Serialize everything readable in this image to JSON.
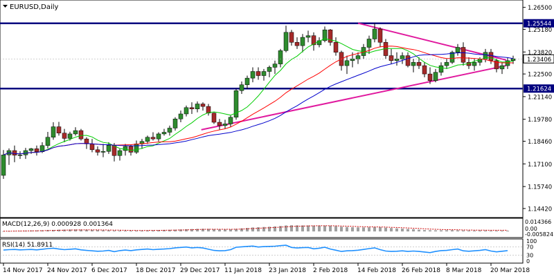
{
  "chart_data": {
    "type": "candlestick",
    "title": "EURUSD,Daily",
    "main_panel": {
      "ylim": [
        1.1392,
        1.269
      ],
      "y_ticks": [
        "1.26500",
        "1.25180",
        "1.23820",
        "1.22500",
        "1.21140",
        "1.19780",
        "1.18460",
        "1.17100",
        "1.15740",
        "1.14420"
      ],
      "y_tick_values": [
        1.265,
        1.2518,
        1.2382,
        1.225,
        1.2114,
        1.1978,
        1.1846,
        1.171,
        1.1574,
        1.1442
      ],
      "grid": false,
      "horizontal_levels": [
        {
          "label": "1.25544",
          "value": 1.25544,
          "color": "#00007f"
        },
        {
          "label": "1.21624",
          "value": 1.21624,
          "color": "#00007f"
        }
      ],
      "current_price": {
        "label": "1.23406",
        "value": 1.23406
      },
      "trendlines": [
        {
          "color": "#e0199e",
          "from": {
            "x": "14 Feb 2018",
            "y": 1.2555
          },
          "to": {
            "x": "21 Mar 2018",
            "y": 1.2334
          }
        },
        {
          "color": "#e0199e",
          "from": {
            "x": "3 Jan 2018",
            "y": 1.1915
          },
          "to": {
            "x": "21 Mar 2018",
            "y": 1.23
          }
        }
      ]
    },
    "x_tick_labels": [
      "14 Nov 2017",
      "24 Nov 2017",
      "6 Dec 2017",
      "18 Dec 2017",
      "29 Dec 2017",
      "11 Jan 2018",
      "23 Jan 2018",
      "2 Feb 2018",
      "14 Feb 2018",
      "26 Feb 2018",
      "8 Mar 2018",
      "20 Mar 2018"
    ],
    "x_tick_bar_index": [
      0,
      8,
      16,
      24,
      32,
      40,
      48,
      56,
      64,
      72,
      80,
      88
    ],
    "candles": [
      [
        1.1641,
        1.1793,
        1.162,
        1.1764
      ],
      [
        1.1764,
        1.1803,
        1.1704,
        1.179
      ],
      [
        1.179,
        1.182,
        1.172,
        1.1762
      ],
      [
        1.1762,
        1.1786,
        1.174,
        1.1764
      ],
      [
        1.1764,
        1.1806,
        1.174,
        1.179
      ],
      [
        1.179,
        1.1806,
        1.177,
        1.1801
      ],
      [
        1.1801,
        1.182,
        1.176,
        1.1783
      ],
      [
        1.1783,
        1.184,
        1.1775,
        1.182
      ],
      [
        1.182,
        1.1902,
        1.1803,
        1.187
      ],
      [
        1.187,
        1.196,
        1.1855,
        1.1933
      ],
      [
        1.1933,
        1.1962,
        1.188,
        1.1895
      ],
      [
        1.1895,
        1.192,
        1.184,
        1.1863
      ],
      [
        1.1863,
        1.1903,
        1.185,
        1.189
      ],
      [
        1.189,
        1.193,
        1.188,
        1.191
      ],
      [
        1.191,
        1.192,
        1.185,
        1.186
      ],
      [
        1.186,
        1.187,
        1.18,
        1.183
      ],
      [
        1.183,
        1.186,
        1.178,
        1.1795
      ],
      [
        1.1795,
        1.1815,
        1.176,
        1.178
      ],
      [
        1.178,
        1.183,
        1.175,
        1.1785
      ],
      [
        1.1785,
        1.184,
        1.177,
        1.1822
      ],
      [
        1.1822,
        1.1835,
        1.1725,
        1.176
      ],
      [
        1.176,
        1.18,
        1.173,
        1.179
      ],
      [
        1.179,
        1.183,
        1.176,
        1.1815
      ],
      [
        1.1815,
        1.1825,
        1.176,
        1.178
      ],
      [
        1.178,
        1.185,
        1.177,
        1.183
      ],
      [
        1.183,
        1.186,
        1.18,
        1.1845
      ],
      [
        1.1845,
        1.188,
        1.183,
        1.187
      ],
      [
        1.187,
        1.19,
        1.185,
        1.186
      ],
      [
        1.186,
        1.19,
        1.1845,
        1.189
      ],
      [
        1.189,
        1.192,
        1.188,
        1.19
      ],
      [
        1.19,
        1.194,
        1.188,
        1.1925
      ],
      [
        1.1925,
        1.199,
        1.191,
        1.198
      ],
      [
        1.198,
        1.203,
        1.196,
        1.201
      ],
      [
        1.201,
        1.206,
        1.1995,
        1.2048
      ],
      [
        1.2048,
        1.208,
        1.201,
        1.204
      ],
      [
        1.204,
        1.2085,
        1.202,
        1.207
      ],
      [
        1.207,
        1.208,
        1.203,
        1.2055
      ],
      [
        1.2055,
        1.207,
        1.2,
        1.2015
      ],
      [
        1.2015,
        1.202,
        1.195,
        1.196
      ],
      [
        1.196,
        1.198,
        1.1915,
        1.194
      ],
      [
        1.194,
        1.1975,
        1.192,
        1.195
      ],
      [
        1.195,
        1.2,
        1.193,
        1.199
      ],
      [
        1.199,
        1.216,
        1.1975,
        1.215
      ],
      [
        1.215,
        1.2205,
        1.213,
        1.2185
      ],
      [
        1.2185,
        1.224,
        1.216,
        1.2225
      ],
      [
        1.2225,
        1.229,
        1.22,
        1.2265
      ],
      [
        1.2265,
        1.229,
        1.2215,
        1.224
      ],
      [
        1.224,
        1.228,
        1.221,
        1.2265
      ],
      [
        1.2265,
        1.23,
        1.223,
        1.229
      ],
      [
        1.229,
        1.233,
        1.225,
        1.231
      ],
      [
        1.231,
        1.24,
        1.229,
        1.239
      ],
      [
        1.239,
        1.254,
        1.238,
        1.25
      ],
      [
        1.25,
        1.2515,
        1.242,
        1.244
      ],
      [
        1.244,
        1.247,
        1.24,
        1.242
      ],
      [
        1.242,
        1.249,
        1.238,
        1.247
      ],
      [
        1.247,
        1.251,
        1.244,
        1.248
      ],
      [
        1.248,
        1.25,
        1.239,
        1.2425
      ],
      [
        1.2425,
        1.247,
        1.241,
        1.245
      ],
      [
        1.245,
        1.2535,
        1.244,
        1.2515
      ],
      [
        1.2515,
        1.252,
        1.242,
        1.244
      ],
      [
        1.244,
        1.247,
        1.236,
        1.238
      ],
      [
        1.238,
        1.239,
        1.227,
        1.23
      ],
      [
        1.23,
        1.236,
        1.225,
        1.233
      ],
      [
        1.233,
        1.238,
        1.229,
        1.234
      ],
      [
        1.234,
        1.238,
        1.231,
        1.236
      ],
      [
        1.236,
        1.243,
        1.234,
        1.241
      ],
      [
        1.241,
        1.248,
        1.237,
        1.246
      ],
      [
        1.246,
        1.2555,
        1.244,
        1.252
      ],
      [
        1.252,
        1.253,
        1.241,
        1.244
      ],
      [
        1.244,
        1.246,
        1.234,
        1.236
      ],
      [
        1.236,
        1.24,
        1.231,
        1.233
      ],
      [
        1.233,
        1.238,
        1.23,
        1.234
      ],
      [
        1.234,
        1.238,
        1.231,
        1.236
      ],
      [
        1.236,
        1.238,
        1.229,
        1.23
      ],
      [
        1.23,
        1.234,
        1.226,
        1.232
      ],
      [
        1.232,
        1.235,
        1.228,
        1.23
      ],
      [
        1.23,
        1.232,
        1.223,
        1.225
      ],
      [
        1.225,
        1.229,
        1.219,
        1.221
      ],
      [
        1.221,
        1.228,
        1.22,
        1.226
      ],
      [
        1.226,
        1.232,
        1.224,
        1.23
      ],
      [
        1.23,
        1.234,
        1.228,
        1.232
      ],
      [
        1.232,
        1.239,
        1.231,
        1.238
      ],
      [
        1.238,
        1.243,
        1.236,
        1.241
      ],
      [
        1.241,
        1.244,
        1.23,
        1.232
      ],
      [
        1.232,
        1.235,
        1.228,
        1.23
      ],
      [
        1.23,
        1.234,
        1.227,
        1.232
      ],
      [
        1.232,
        1.235,
        1.23,
        1.234
      ],
      [
        1.234,
        1.24,
        1.232,
        1.238
      ],
      [
        1.238,
        1.24,
        1.231,
        1.233
      ],
      [
        1.233,
        1.234,
        1.226,
        1.228
      ],
      [
        1.228,
        1.232,
        1.225,
        1.23
      ],
      [
        1.23,
        1.235,
        1.228,
        1.233
      ],
      [
        1.233,
        1.236,
        1.231,
        1.2341
      ]
    ],
    "moving_averages": [
      {
        "color": "#00cc00",
        "period": 8
      },
      {
        "color": "#ff0000",
        "period": 21
      },
      {
        "color": "#0000cc",
        "period": 34
      }
    ],
    "macd_panel": {
      "label": "MACD(12,26,9) 0.000928 0.001364",
      "y_ticks": [
        "0.014366",
        "0.00",
        "-0.005824"
      ],
      "y_tick_values": [
        0.014366,
        0.0,
        -0.005824
      ],
      "histogram_color": "#a0a0a0",
      "signal_color": "#cc0000",
      "histogram": [
        0.0002,
        0.0003,
        0.0005,
        0.0007,
        0.0009,
        0.0011,
        0.0012,
        0.0014,
        0.0016,
        0.0018,
        0.0021,
        0.0022,
        0.0023,
        0.0024,
        0.0023,
        0.0021,
        0.0019,
        0.0017,
        0.0015,
        0.0014,
        0.0011,
        0.001,
        0.001,
        0.0009,
        0.001,
        0.0011,
        0.0013,
        0.0014,
        0.0016,
        0.0017,
        0.0019,
        0.0021,
        0.0024,
        0.0027,
        0.0029,
        0.0031,
        0.0032,
        0.0031,
        0.0028,
        0.0025,
        0.0024,
        0.0025,
        0.0031,
        0.0037,
        0.0042,
        0.0048,
        0.0051,
        0.0054,
        0.0057,
        0.0061,
        0.0066,
        0.0073,
        0.0075,
        0.0074,
        0.0073,
        0.0073,
        0.0071,
        0.007,
        0.0071,
        0.0069,
        0.0064,
        0.0058,
        0.0054,
        0.0051,
        0.0049,
        0.0049,
        0.005,
        0.0053,
        0.0051,
        0.0046,
        0.0041,
        0.0037,
        0.0034,
        0.003,
        0.0027,
        0.0022,
        0.0017,
        0.0015,
        0.0014,
        0.0014,
        0.0015,
        0.0016,
        0.0014,
        0.0012,
        0.0011,
        0.0011,
        0.0012,
        0.0011,
        0.0009,
        0.0009,
        0.0009,
        0.0009
      ],
      "signal": [
        0.0003,
        0.0003,
        0.0004,
        0.0005,
        0.0006,
        0.0007,
        0.0008,
        0.0009,
        0.0011,
        0.0012,
        0.0014,
        0.0015,
        0.0017,
        0.0018,
        0.0019,
        0.0019,
        0.0019,
        0.0019,
        0.0018,
        0.0017,
        0.0016,
        0.0015,
        0.0014,
        0.0013,
        0.0012,
        0.0012,
        0.0012,
        0.0013,
        0.0013,
        0.0014,
        0.0015,
        0.0016,
        0.0018,
        0.0019,
        0.0021,
        0.0023,
        0.0025,
        0.0026,
        0.0026,
        0.0026,
        0.0026,
        0.0026,
        0.0027,
        0.0029,
        0.0032,
        0.0035,
        0.0038,
        0.0042,
        0.0045,
        0.0048,
        0.0052,
        0.0056,
        0.006,
        0.0063,
        0.0065,
        0.0067,
        0.0068,
        0.0069,
        0.0069,
        0.0069,
        0.0068,
        0.0066,
        0.0064,
        0.0062,
        0.0059,
        0.0057,
        0.0056,
        0.0055,
        0.0054,
        0.0053,
        0.005,
        0.0048,
        0.0045,
        0.0042,
        0.0039,
        0.0036,
        0.0032,
        0.0029,
        0.0026,
        0.0024,
        0.0022,
        0.0021,
        0.002,
        0.0018,
        0.0017,
        0.0016,
        0.0015,
        0.0015,
        0.0014,
        0.0014,
        0.0014,
        0.0014
      ]
    },
    "rsi_panel": {
      "label": "RSI(14) 51.8911",
      "y_ticks": [
        "100",
        "70",
        "30",
        "0"
      ],
      "y_tick_values": [
        100,
        70,
        30,
        0
      ],
      "color": "#1e90ff",
      "values": [
        55,
        57,
        58,
        56,
        57,
        58,
        56,
        59,
        62,
        64,
        60,
        57,
        59,
        61,
        56,
        53,
        51,
        49,
        50,
        53,
        47,
        52,
        55,
        52,
        56,
        58,
        60,
        57,
        59,
        60,
        62,
        66,
        68,
        70,
        66,
        68,
        65,
        59,
        53,
        51,
        52,
        57,
        69,
        71,
        73,
        75,
        70,
        72,
        73,
        74,
        77,
        79,
        68,
        65,
        67,
        68,
        61,
        64,
        69,
        60,
        54,
        48,
        51,
        52,
        54,
        58,
        62,
        66,
        57,
        50,
        48,
        49,
        51,
        48,
        50,
        48,
        45,
        42,
        48,
        52,
        53,
        57,
        60,
        51,
        49,
        51,
        53,
        57,
        50,
        46,
        49,
        52
      ]
    }
  }
}
